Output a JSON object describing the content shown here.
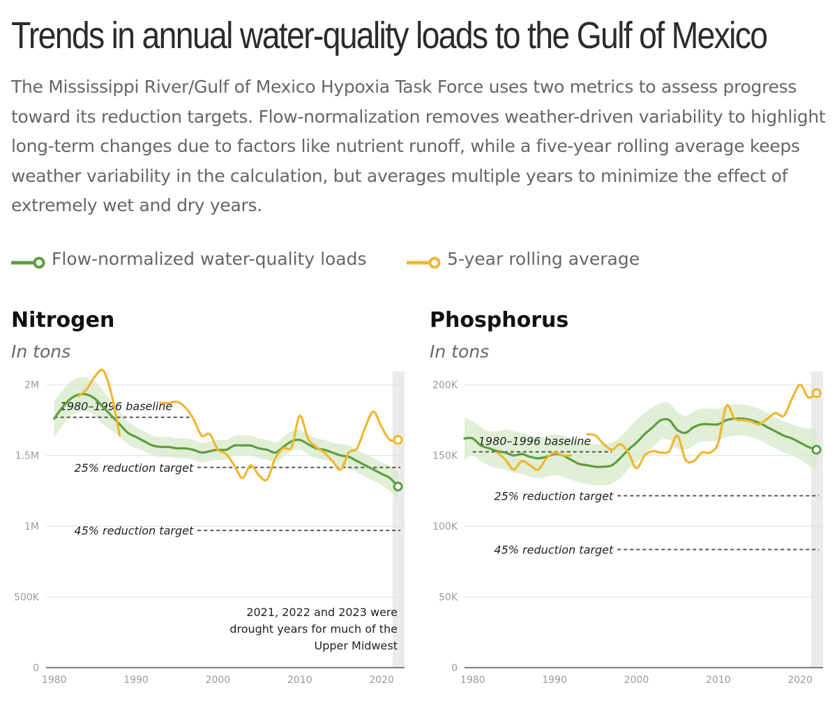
{
  "header": {
    "title": "Trends in annual water-quality loads to the Gulf of Mexico",
    "subtitle": "The Mississippi River/Gulf of Mexico Hypoxia Task Force uses two metrics to assess progress toward its reduction targets. Flow-normalization removes weather-driven variability to highlight long-term changes due to factors like nutrient runoff, while a five-year rolling average keeps weather variability in the calculation, but averages multiple years to minimize the effect of extremely wet and dry years."
  },
  "legend": {
    "items": [
      {
        "label": "Flow-normalized water-quality loads",
        "color": "#5f9c41"
      },
      {
        "label": "5-year rolling average",
        "color": "#efb72f"
      }
    ]
  },
  "chart_data": [
    {
      "type": "line",
      "title": "Nitrogen",
      "subtitle": "In tons",
      "xlim": [
        1979,
        2022.8
      ],
      "ylim": [
        0,
        2000000
      ],
      "xticks": [
        1980,
        1990,
        2000,
        2010,
        2020
      ],
      "xtick_labels": [
        "1980",
        "1990",
        "2000",
        "2010",
        "2020"
      ],
      "yticks": [
        0,
        500000,
        1000000,
        1500000,
        2000000
      ],
      "ytick_labels": [
        "0",
        "500K",
        "1M",
        "1.5M",
        "2M"
      ],
      "grid": true,
      "shaded_region": {
        "x": [
          2021,
          2023
        ],
        "label": "2021, 2022 and 2023 were drought years for much of the Upper Midwest"
      },
      "reference_lines": [
        {
          "label": "1980–1996 baseline",
          "y": 1770000,
          "x_start": 1980,
          "x_end": 1997
        },
        {
          "label": "25% reduction target",
          "y": 1415000,
          "x_start": 1997,
          "x_end": 2022.3
        },
        {
          "label": "45% reduction target",
          "y": 970000,
          "x_start": 1997,
          "x_end": 2022.3
        }
      ],
      "series": [
        {
          "name": "Flow-normalized water-quality loads",
          "x": [
            1980,
            1981,
            1982,
            1983,
            1984,
            1985,
            1986,
            1987,
            1988,
            1989,
            1990,
            1991,
            1992,
            1993,
            1994,
            1995,
            1996,
            1997,
            1998,
            1999,
            2000,
            2001,
            2002,
            2003,
            2004,
            2005,
            2006,
            2007,
            2008,
            2009,
            2010,
            2011,
            2012,
            2013,
            2014,
            2015,
            2016,
            2017,
            2018,
            2019,
            2020,
            2021,
            2022
          ],
          "y": [
            1760000,
            1840000,
            1900000,
            1930000,
            1930000,
            1900000,
            1840000,
            1780000,
            1720000,
            1660000,
            1630000,
            1600000,
            1570000,
            1560000,
            1560000,
            1550000,
            1550000,
            1540000,
            1520000,
            1530000,
            1540000,
            1540000,
            1570000,
            1570000,
            1570000,
            1550000,
            1540000,
            1520000,
            1560000,
            1600000,
            1610000,
            1580000,
            1550000,
            1540000,
            1520000,
            1500000,
            1490000,
            1460000,
            1430000,
            1400000,
            1370000,
            1340000,
            1280000
          ],
          "band_upper": [
            1880000,
            1960000,
            2020000,
            2050000,
            2050000,
            2020000,
            1960000,
            1880000,
            1810000,
            1740000,
            1700000,
            1670000,
            1640000,
            1630000,
            1630000,
            1620000,
            1620000,
            1610000,
            1590000,
            1600000,
            1610000,
            1610000,
            1640000,
            1640000,
            1640000,
            1620000,
            1610000,
            1590000,
            1630000,
            1670000,
            1680000,
            1650000,
            1620000,
            1610000,
            1590000,
            1580000,
            1570000,
            1540000,
            1510000,
            1480000,
            1450000,
            1430000,
            1380000
          ],
          "band_lower": [
            1630000,
            1710000,
            1780000,
            1810000,
            1810000,
            1780000,
            1720000,
            1680000,
            1630000,
            1580000,
            1550000,
            1530000,
            1500000,
            1490000,
            1490000,
            1480000,
            1480000,
            1470000,
            1450000,
            1460000,
            1470000,
            1470000,
            1500000,
            1500000,
            1500000,
            1480000,
            1470000,
            1450000,
            1490000,
            1530000,
            1540000,
            1510000,
            1480000,
            1470000,
            1450000,
            1420000,
            1410000,
            1380000,
            1350000,
            1320000,
            1290000,
            1250000,
            1190000
          ],
          "color": "#5f9c41",
          "end_marker": true
        },
        {
          "name": "5-year rolling average",
          "x": [
            1983,
            1984,
            1985,
            1986,
            1987,
            1988,
            null,
            1993,
            1994,
            1995,
            1996,
            1997,
            1998,
            1999,
            2000,
            2001,
            2002,
            2003,
            2004,
            2005,
            2006,
            2007,
            2008,
            2009,
            2010,
            2011,
            2012,
            2013,
            2014,
            2015,
            2016,
            2017,
            2018,
            2019,
            2020,
            2021,
            2022
          ],
          "y": [
            1920000,
            1970000,
            2060000,
            2100000,
            1930000,
            1640000,
            null,
            1870000,
            1870000,
            1880000,
            1840000,
            1760000,
            1640000,
            1650000,
            1540000,
            1510000,
            1430000,
            1340000,
            1430000,
            1360000,
            1330000,
            1480000,
            1550000,
            1560000,
            1780000,
            1620000,
            1560000,
            1520000,
            1460000,
            1400000,
            1520000,
            1550000,
            1700000,
            1810000,
            1700000,
            1610000,
            1610000
          ],
          "color": "#efb72f",
          "end_marker": true
        }
      ]
    },
    {
      "type": "line",
      "title": "Phosphorus",
      "subtitle": "In tons",
      "xlim": [
        1979,
        2022.8
      ],
      "ylim": [
        0,
        200000
      ],
      "xticks": [
        1980,
        1990,
        2000,
        2010,
        2020
      ],
      "xtick_labels": [
        "1980",
        "1990",
        "2000",
        "2010",
        "2020"
      ],
      "yticks": [
        0,
        50000,
        100000,
        150000,
        200000
      ],
      "ytick_labels": [
        "0",
        "50K",
        "100K",
        "150K",
        "200K"
      ],
      "grid": true,
      "shaded_region": {
        "x": [
          2021,
          2023
        ],
        "label": ""
      },
      "reference_lines": [
        {
          "label": "1980–1996 baseline",
          "y": 152500,
          "x_start": 1980,
          "x_end": 1997
        },
        {
          "label": "25% reduction target",
          "y": 121500,
          "x_start": 1997,
          "x_end": 2022.3
        },
        {
          "label": "45% reduction target",
          "y": 83500,
          "x_start": 1997,
          "x_end": 2022.3
        }
      ],
      "series": [
        {
          "name": "Flow-normalized water-quality loads",
          "x": [
            1979,
            1980,
            1981,
            1982,
            1983,
            1984,
            1985,
            1986,
            1987,
            1988,
            1989,
            1990,
            1991,
            1992,
            1993,
            1994,
            1995,
            1996,
            1997,
            1998,
            1999,
            2000,
            2001,
            2002,
            2003,
            2004,
            2005,
            2006,
            2007,
            2008,
            2009,
            2010,
            2011,
            2012,
            2013,
            2014,
            2015,
            2016,
            2017,
            2018,
            2019,
            2020,
            2021,
            2022
          ],
          "y": [
            162000,
            162000,
            157000,
            155000,
            153000,
            152000,
            150000,
            151000,
            149000,
            148000,
            149000,
            151000,
            150000,
            147000,
            144000,
            143000,
            142000,
            142000,
            143000,
            148000,
            154000,
            159000,
            165000,
            170000,
            175000,
            175000,
            168000,
            166000,
            170000,
            172000,
            172000,
            172000,
            175000,
            176000,
            176000,
            175000,
            173000,
            170000,
            167000,
            164000,
            162000,
            159000,
            156000,
            154000
          ],
          "band_upper": [
            177000,
            174000,
            170000,
            167000,
            167000,
            168000,
            167000,
            166000,
            164000,
            163000,
            163000,
            165000,
            164000,
            162000,
            160000,
            159000,
            158000,
            158000,
            159000,
            163000,
            169000,
            175000,
            180000,
            184000,
            187000,
            187000,
            181000,
            178000,
            181000,
            183000,
            183000,
            183000,
            185000,
            186000,
            186000,
            185000,
            183000,
            180000,
            177000,
            174000,
            172000,
            170000,
            169000,
            169000
          ],
          "band_lower": [
            147000,
            150000,
            146000,
            143000,
            141000,
            140000,
            138000,
            137000,
            135000,
            134000,
            135000,
            136000,
            135000,
            133000,
            131000,
            130000,
            129000,
            129000,
            130000,
            134000,
            140000,
            145000,
            151000,
            156000,
            161000,
            161000,
            155000,
            154000,
            157000,
            160000,
            160000,
            161000,
            163000,
            164000,
            164000,
            163000,
            161000,
            158000,
            155000,
            152000,
            150000,
            147000,
            143000,
            139000
          ],
          "color": "#5f9c41",
          "end_marker": true
        },
        {
          "name": "5-year rolling average",
          "x": [
            1983,
            1984,
            1985,
            1986,
            1987,
            1988,
            1989,
            1990,
            1991,
            1992,
            null,
            1994,
            1995,
            1996,
            1997,
            1998,
            1999,
            2000,
            2001,
            2002,
            2003,
            2004,
            2005,
            2006,
            2007,
            2008,
            2009,
            2010,
            2011,
            2012,
            2013,
            2014,
            2015,
            2016,
            2017,
            2018,
            2019,
            2020,
            2021,
            2022
          ],
          "y": [
            152000,
            147000,
            140000,
            146000,
            143000,
            140000,
            148000,
            152000,
            150000,
            150000,
            null,
            165000,
            164000,
            158000,
            154000,
            158000,
            152000,
            141000,
            150000,
            153000,
            152000,
            153000,
            164000,
            147000,
            146000,
            152000,
            152000,
            159000,
            185000,
            176000,
            175000,
            174000,
            172000,
            176000,
            180000,
            178000,
            190000,
            200000,
            191000,
            194000
          ],
          "color": "#efb72f",
          "end_marker": true
        }
      ]
    }
  ]
}
